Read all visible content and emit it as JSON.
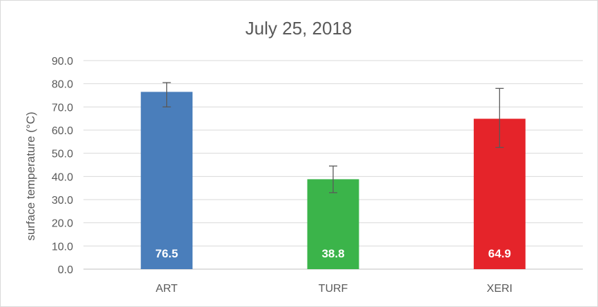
{
  "chart_data": {
    "type": "bar",
    "title": "July 25, 2018",
    "xlabel": "",
    "ylabel": "surface temperature (°C)",
    "ylim": [
      0,
      90
    ],
    "y_ticks": [
      "0.0",
      "10.0",
      "20.0",
      "30.0",
      "40.0",
      "50.0",
      "60.0",
      "70.0",
      "80.0",
      "90.0"
    ],
    "grid": true,
    "categories": [
      "ART",
      "TURF",
      "XERI"
    ],
    "values": [
      76.5,
      38.8,
      64.9
    ],
    "data_labels": [
      "76.5",
      "38.8",
      "64.9"
    ],
    "error_bars": [
      {
        "low": 70.0,
        "high": 80.5
      },
      {
        "low": 33.0,
        "high": 44.5
      },
      {
        "low": 52.5,
        "high": 78.0
      }
    ],
    "colors": [
      "#4a7ebb",
      "#3bb44a",
      "#e5242a"
    ]
  }
}
